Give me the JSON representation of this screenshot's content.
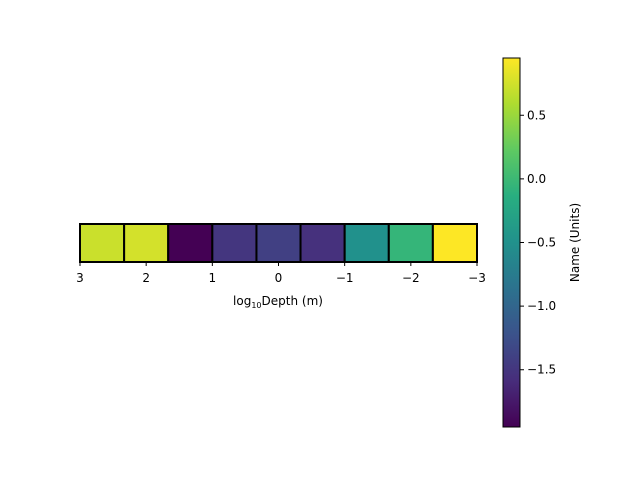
{
  "chart_data": {
    "type": "heatmap",
    "title": "",
    "xlabel": {
      "prefix": "log",
      "subscript": "10",
      "suffix": "Depth (m)"
    },
    "x_ticks": [
      3,
      2,
      1,
      0,
      -1,
      -2,
      -3
    ],
    "x_tick_labels": [
      "3",
      "2",
      "1",
      "0",
      "−1",
      "−2",
      "−3"
    ],
    "xlim": [
      3,
      -3
    ],
    "x_scale": "linear, reversed",
    "cells": [
      {
        "x_from": 3.0,
        "x_to": 2.333,
        "value": 0.72
      },
      {
        "x_from": 2.333,
        "x_to": 1.667,
        "value": 0.76
      },
      {
        "x_from": 1.667,
        "x_to": 1.0,
        "value": -1.95
      },
      {
        "x_from": 1.0,
        "x_to": 0.333,
        "value": -1.5
      },
      {
        "x_from": 0.333,
        "x_to": -0.333,
        "value": -1.4
      },
      {
        "x_from": -0.333,
        "x_to": -1.0,
        "value": -1.55
      },
      {
        "x_from": -1.0,
        "x_to": -1.667,
        "value": -0.5
      },
      {
        "x_from": -1.667,
        "x_to": -2.333,
        "value": -0.05
      },
      {
        "x_from": -2.333,
        "x_to": -3.0,
        "value": 0.95
      }
    ],
    "colorbar": {
      "label": "Name (Units)",
      "colormap": "viridis",
      "range": [
        -1.95,
        0.95
      ],
      "ticks": [
        0.5,
        0.0,
        -0.5,
        -1.0,
        -1.5
      ],
      "tick_labels": [
        "0.5",
        "0.0",
        "−0.5",
        "−1.0",
        "−1.5"
      ]
    },
    "grid": false,
    "legend": "none"
  }
}
